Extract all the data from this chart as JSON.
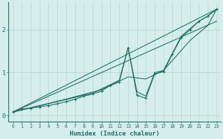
{
  "xlabel": "Humidex (Indice chaleur)",
  "bg_color": "#d5eeeb",
  "grid_color": "#b8d8d4",
  "line_color": "#1e6e63",
  "xlim": [
    -0.5,
    23.5
  ],
  "ylim": [
    -0.15,
    2.65
  ],
  "yticks": [
    0,
    1,
    2
  ],
  "xticks": [
    0,
    1,
    2,
    3,
    4,
    5,
    6,
    7,
    8,
    9,
    10,
    11,
    12,
    13,
    14,
    15,
    16,
    17,
    18,
    19,
    20,
    21,
    22,
    23
  ],
  "main_line": [
    [
      0,
      0.08
    ],
    [
      1,
      0.15
    ],
    [
      2,
      0.17
    ],
    [
      3,
      0.2
    ],
    [
      4,
      0.23
    ],
    [
      5,
      0.27
    ],
    [
      6,
      0.32
    ],
    [
      7,
      0.38
    ],
    [
      8,
      0.45
    ],
    [
      9,
      0.5
    ],
    [
      10,
      0.57
    ],
    [
      11,
      0.7
    ],
    [
      12,
      0.78
    ],
    [
      13,
      1.58
    ],
    [
      14,
      0.47
    ],
    [
      15,
      0.4
    ],
    [
      16,
      0.97
    ],
    [
      17,
      1.02
    ],
    [
      18,
      1.43
    ],
    [
      19,
      1.82
    ],
    [
      20,
      2.0
    ],
    [
      21,
      2.2
    ],
    [
      22,
      2.32
    ],
    [
      23,
      2.48
    ]
  ],
  "line_smooth1": [
    [
      0,
      0.08
    ],
    [
      5,
      0.32
    ],
    [
      9,
      0.52
    ],
    [
      12,
      0.82
    ],
    [
      13,
      1.58
    ],
    [
      14,
      0.55
    ],
    [
      15,
      0.45
    ],
    [
      16,
      1.0
    ],
    [
      17,
      1.05
    ],
    [
      19,
      1.85
    ],
    [
      21,
      2.2
    ],
    [
      22,
      2.32
    ],
    [
      23,
      2.48
    ]
  ],
  "line_smooth2": [
    [
      0,
      0.08
    ],
    [
      6,
      0.38
    ],
    [
      10,
      0.6
    ],
    [
      13,
      0.9
    ],
    [
      15,
      0.85
    ],
    [
      17,
      1.05
    ],
    [
      20,
      1.75
    ],
    [
      22,
      2.1
    ],
    [
      23,
      2.48
    ]
  ],
  "line_trend1": [
    [
      0,
      0.08
    ],
    [
      23,
      2.48
    ]
  ],
  "line_trend2": [
    [
      0,
      0.08
    ],
    [
      23,
      2.2
    ]
  ]
}
